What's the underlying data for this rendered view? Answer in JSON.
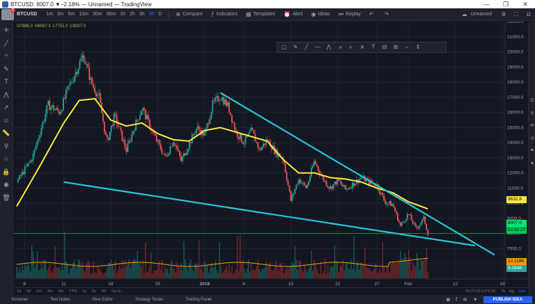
{
  "window": {
    "title": "BTCUSD: 8007.0 ▼−2.18% — Unnamed — TradingView",
    "minimize": "—",
    "maximize": "❐",
    "close": "✕"
  },
  "toolbar": {
    "notif_count": "6",
    "symbol": "BTCUSD",
    "timeframes": [
      "1m",
      "3m",
      "5m",
      "15m",
      "30m",
      "45m",
      "1h",
      "2h",
      "3h",
      "4h",
      "D"
    ],
    "active_timeframe": "4h",
    "compare": "Compare",
    "indicators": "Indicators",
    "templates": "Templates",
    "alert": "Alert",
    "ideas": "Ideas",
    "replay": "Replay",
    "layout_name": "Unnamed"
  },
  "legend": {
    "open": "O7986.3",
    "high": "H8067.3",
    "low": "L7751.0",
    "close": "C8007.0"
  },
  "price_labels": {
    "ma": "9632.8",
    "last": "8007.0",
    "countdown": "02:32:27",
    "vol_ma": "13.118K",
    "vol": "9.284K"
  },
  "timebar": {
    "ranges": [
      "1d",
      "5d",
      "1m",
      "3m",
      "6m",
      "YTD",
      "1y",
      "5y",
      "All",
      "Go to..."
    ],
    "clock": "03:27:33 (UTC-6)",
    "percent": "%",
    "log": "log",
    "auto": "auto"
  },
  "bottombar": {
    "tabs": [
      "Screener",
      "Text Notes",
      "Pine Editor",
      "Strategy Tester",
      "Trading Panel"
    ],
    "publish": "PUBLISH IDEA"
  },
  "colors": {
    "background": "#131722",
    "up": "#26a69a",
    "down": "#ef5350",
    "ma": "#ffeb3b",
    "trendline": "#26c6da",
    "last_price": "#00e676",
    "vol_ma": "#ff9800",
    "accent": "#2962ff"
  },
  "icons": {
    "left_tools": [
      "crosshair-icon",
      "trend-line-icon",
      "pitchfork-icon",
      "brush-icon",
      "text-icon",
      "pattern-icon",
      "prediction-icon",
      "icon-tool-icon",
      "ruler-icon",
      "zoom-icon",
      "magnet-icon",
      "lock-icon",
      "eye-icon",
      "trash-icon"
    ],
    "draw_widget": [
      "rectangle-icon",
      "pen-icon",
      "line-icon",
      "horizontal-line-icon",
      "fib-icon",
      "pattern-icon",
      "elliott-icon",
      "path-icon",
      "text-icon",
      "fib-channel-icon",
      "gann-icon",
      "date-range-icon",
      "price-range-icon"
    ]
  },
  "chart_data": {
    "type": "candlestick",
    "symbol": "BTCUSD",
    "interval": "4h",
    "y_axis": {
      "ticks": [
        6000,
        7000,
        8000,
        9000,
        10000,
        11000,
        12000,
        13000,
        14000,
        15000,
        16000,
        17000,
        18000,
        19000,
        20000,
        21000,
        22000
      ],
      "ylim": [
        5000,
        22000
      ]
    },
    "x_axis": {
      "ticks": [
        "6",
        "11",
        "18",
        "25",
        "2018",
        "8",
        "15",
        "22",
        "27",
        "Feb",
        "12",
        "19"
      ]
    },
    "last_price": 8007.0,
    "ma_last": 9632.8,
    "vol_ma_last": "13.118K",
    "vol_last": "9.284K",
    "path_points": [
      {
        "t": 0,
        "p": 11400
      },
      {
        "t": 4,
        "p": 13000
      },
      {
        "t": 8,
        "p": 16500
      },
      {
        "t": 11,
        "p": 16000
      },
      {
        "t": 13,
        "p": 17500
      },
      {
        "t": 16,
        "p": 19200
      },
      {
        "t": 17,
        "p": 19800
      },
      {
        "t": 19,
        "p": 18000
      },
      {
        "t": 21,
        "p": 17000
      },
      {
        "t": 23,
        "p": 14000
      },
      {
        "t": 25,
        "p": 15800
      },
      {
        "t": 28,
        "p": 13500
      },
      {
        "t": 30,
        "p": 15000
      },
      {
        "t": 32,
        "p": 16300
      },
      {
        "t": 35,
        "p": 14500
      },
      {
        "t": 38,
        "p": 13000
      },
      {
        "t": 40,
        "p": 14200
      },
      {
        "t": 42,
        "p": 12800
      },
      {
        "t": 44,
        "p": 13900
      },
      {
        "t": 46,
        "p": 15000
      },
      {
        "t": 48,
        "p": 14500
      },
      {
        "t": 50,
        "p": 16500
      },
      {
        "t": 52,
        "p": 17100
      },
      {
        "t": 54,
        "p": 16400
      },
      {
        "t": 56,
        "p": 14700
      },
      {
        "t": 58,
        "p": 14000
      },
      {
        "t": 60,
        "p": 14800
      },
      {
        "t": 62,
        "p": 13500
      },
      {
        "t": 64,
        "p": 14200
      },
      {
        "t": 66,
        "p": 13400
      },
      {
        "t": 68,
        "p": 13000
      },
      {
        "t": 70,
        "p": 10200
      },
      {
        "t": 72,
        "p": 11600
      },
      {
        "t": 74,
        "p": 11000
      },
      {
        "t": 76,
        "p": 12800
      },
      {
        "t": 78,
        "p": 11700
      },
      {
        "t": 80,
        "p": 11000
      },
      {
        "t": 82,
        "p": 11500
      },
      {
        "t": 84,
        "p": 10900
      },
      {
        "t": 86,
        "p": 11300
      },
      {
        "t": 88,
        "p": 11700
      },
      {
        "t": 90,
        "p": 11400
      },
      {
        "t": 92,
        "p": 11200
      },
      {
        "t": 94,
        "p": 10100
      },
      {
        "t": 96,
        "p": 9900
      },
      {
        "t": 98,
        "p": 8500
      },
      {
        "t": 100,
        "p": 9300
      },
      {
        "t": 102,
        "p": 8300
      },
      {
        "t": 104,
        "p": 9000
      },
      {
        "t": 105,
        "p": 8007
      }
    ],
    "ma_points": [
      {
        "t": 0,
        "p": 9800
      },
      {
        "t": 6,
        "p": 12500
      },
      {
        "t": 12,
        "p": 15300
      },
      {
        "t": 16,
        "p": 16800
      },
      {
        "t": 20,
        "p": 16900
      },
      {
        "t": 24,
        "p": 15500
      },
      {
        "t": 28,
        "p": 15100
      },
      {
        "t": 32,
        "p": 15300
      },
      {
        "t": 36,
        "p": 14600
      },
      {
        "t": 40,
        "p": 14200
      },
      {
        "t": 44,
        "p": 14100
      },
      {
        "t": 48,
        "p": 14800
      },
      {
        "t": 52,
        "p": 15000
      },
      {
        "t": 56,
        "p": 14700
      },
      {
        "t": 60,
        "p": 14400
      },
      {
        "t": 64,
        "p": 14100
      },
      {
        "t": 68,
        "p": 12900
      },
      {
        "t": 72,
        "p": 12000
      },
      {
        "t": 76,
        "p": 12000
      },
      {
        "t": 80,
        "p": 11700
      },
      {
        "t": 84,
        "p": 11600
      },
      {
        "t": 88,
        "p": 11400
      },
      {
        "t": 92,
        "p": 11000
      },
      {
        "t": 96,
        "p": 10700
      },
      {
        "t": 100,
        "p": 10100
      },
      {
        "t": 105,
        "p": 9632.8
      }
    ],
    "trendlines": [
      {
        "name": "resistance",
        "from": {
          "t": 52,
          "p": 17300
        },
        "to": {
          "t": 122,
          "p": 6600
        }
      },
      {
        "name": "support",
        "from": {
          "t": 12,
          "p": 11400
        },
        "to": {
          "t": 117,
          "p": 7200
        }
      }
    ],
    "horizontal_line": 8007.0,
    "x_range": [
      0,
      124
    ],
    "tick_positions": [
      2,
      12,
      24,
      36,
      48,
      58,
      70,
      82,
      92,
      100,
      112,
      124
    ]
  }
}
